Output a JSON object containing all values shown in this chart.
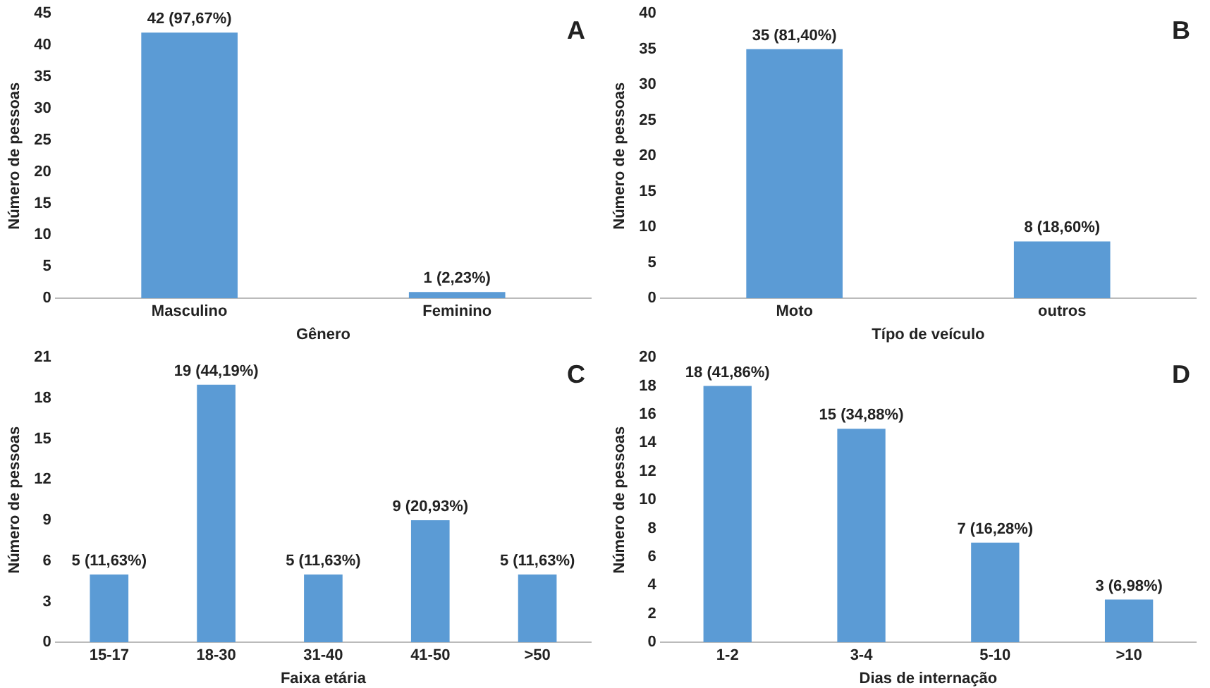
{
  "chart_data": [
    {
      "type": "bar",
      "xlabel": "Gênero",
      "ylabel": "Número de pessoas",
      "categories": [
        "Masculino",
        "Feminino"
      ],
      "values": [
        42,
        1
      ],
      "value_labels": [
        "42 (97,67%)",
        "1 (2,23%)"
      ],
      "color": "#5b9bd5",
      "ylim": [
        0,
        45
      ],
      "yticks": [
        0,
        5,
        10,
        15,
        20,
        25,
        30,
        35,
        40,
        45
      ],
      "grid": false,
      "legend": false,
      "annotations": [
        "A"
      ]
    },
    {
      "type": "bar",
      "xlabel": "Típo de veículo",
      "ylabel": "Número de pessoas",
      "categories": [
        "Moto",
        "outros"
      ],
      "values": [
        35,
        8
      ],
      "value_labels": [
        "35 (81,40%)",
        "8 (18,60%)"
      ],
      "color": "#5b9bd5",
      "ylim": [
        0,
        40
      ],
      "yticks": [
        0,
        5,
        10,
        15,
        20,
        25,
        30,
        35,
        40
      ],
      "grid": false,
      "legend": false,
      "annotations": [
        "B"
      ]
    },
    {
      "type": "bar",
      "xlabel": "Faixa etária",
      "ylabel": "Número de pessoas",
      "categories": [
        "15-17",
        "18-30",
        "31-40",
        "41-50",
        ">50"
      ],
      "values": [
        5,
        19,
        5,
        9,
        5
      ],
      "value_labels": [
        "5 (11,63%)",
        "19 (44,19%)",
        "5 (11,63%)",
        "9 (20,93%)",
        "5 (11,63%)"
      ],
      "color": "#5b9bd5",
      "ylim": [
        0,
        21
      ],
      "yticks": [
        0,
        3,
        6,
        9,
        12,
        15,
        18,
        21
      ],
      "grid": false,
      "legend": false,
      "annotations": [
        "C"
      ]
    },
    {
      "type": "bar",
      "xlabel": "Dias de internação",
      "ylabel": "Número de pessoas",
      "categories": [
        "1-2",
        "3-4",
        "5-10",
        ">10"
      ],
      "values": [
        18,
        15,
        7,
        3
      ],
      "value_labels": [
        "18 (41,86%)",
        "15 (34,88%)",
        "7 (16,28%)",
        "3 (6,98%)"
      ],
      "color": "#5b9bd5",
      "ylim": [
        0,
        20
      ],
      "yticks": [
        0,
        2,
        4,
        6,
        8,
        10,
        12,
        14,
        16,
        18,
        20
      ],
      "grid": false,
      "legend": false,
      "annotations": [
        "D"
      ]
    }
  ]
}
